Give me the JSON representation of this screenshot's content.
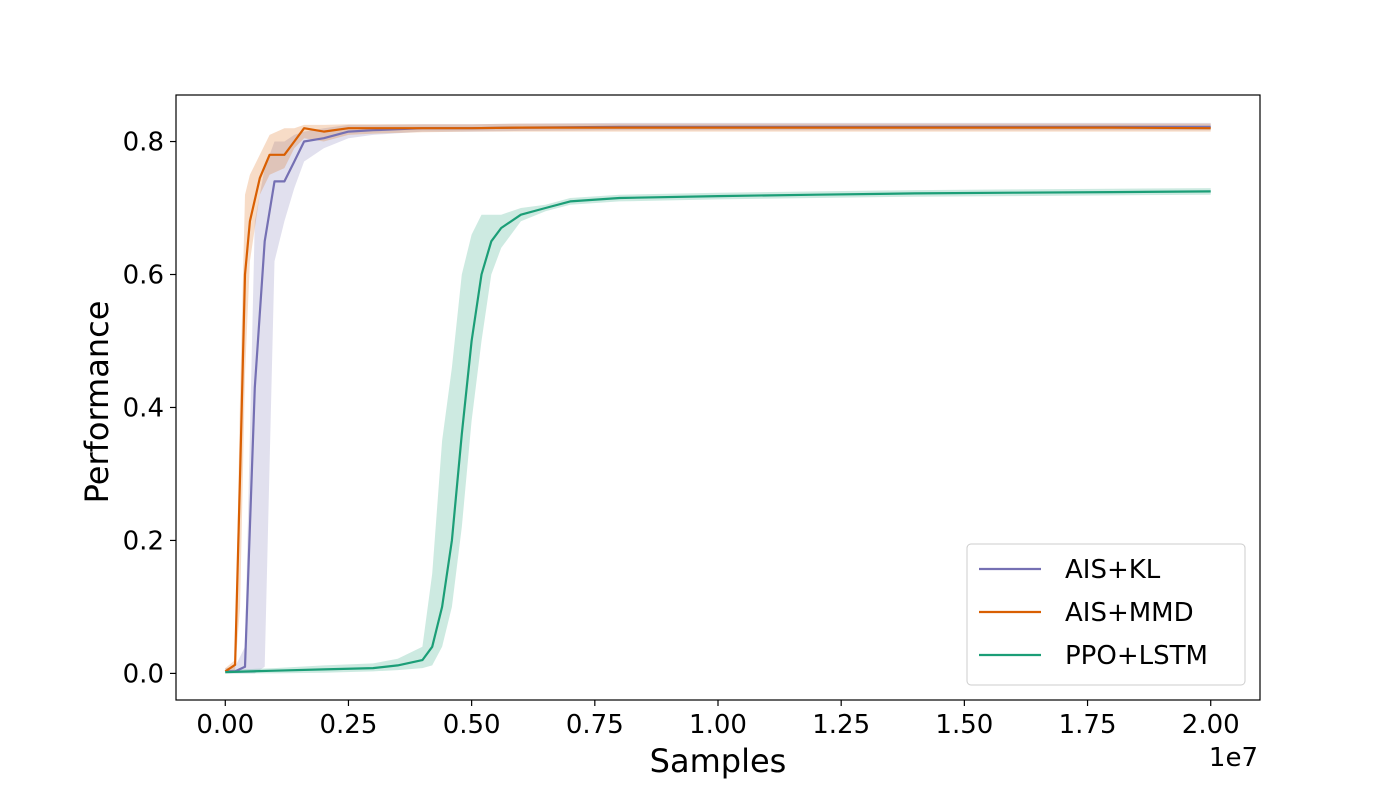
{
  "chart_data": {
    "type": "line",
    "title": "",
    "xlabel": "Samples",
    "ylabel": "Performance",
    "x_offset_label": "1e7",
    "xlim": [
      -0.1,
      2.1
    ],
    "ylim": [
      -0.04,
      0.87
    ],
    "xticks": [
      0.0,
      0.25,
      0.5,
      0.75,
      1.0,
      1.25,
      1.5,
      1.75,
      2.0
    ],
    "xtick_labels": [
      "0.00",
      "0.25",
      "0.50",
      "0.75",
      "1.00",
      "1.25",
      "1.50",
      "1.75",
      "2.00"
    ],
    "yticks": [
      0.0,
      0.2,
      0.4,
      0.6,
      0.8
    ],
    "ytick_labels": [
      "0.0",
      "0.2",
      "0.4",
      "0.6",
      "0.8"
    ],
    "grid": false,
    "legend_position": "bottom-right",
    "series": [
      {
        "name": "AIS+KL",
        "color": "#7570b3",
        "x": [
          0.0,
          0.02,
          0.04,
          0.06,
          0.08,
          0.1,
          0.12,
          0.14,
          0.16,
          0.2,
          0.25,
          0.3,
          0.4,
          0.5,
          0.6,
          0.8,
          1.0,
          1.2,
          1.4,
          1.6,
          1.8,
          2.0
        ],
        "y": [
          0.003,
          0.003,
          0.01,
          0.43,
          0.65,
          0.74,
          0.74,
          0.77,
          0.8,
          0.805,
          0.815,
          0.817,
          0.82,
          0.82,
          0.821,
          0.822,
          0.822,
          0.822,
          0.822,
          0.822,
          0.822,
          0.822
        ],
        "band_low": [
          0.0,
          0.0,
          0.0,
          0.0,
          0.01,
          0.62,
          0.68,
          0.73,
          0.77,
          0.79,
          0.805,
          0.81,
          0.815,
          0.815,
          0.816,
          0.817,
          0.817,
          0.817,
          0.817,
          0.817,
          0.817,
          0.817
        ],
        "band_high": [
          0.008,
          0.01,
          0.04,
          0.68,
          0.76,
          0.8,
          0.8,
          0.81,
          0.815,
          0.82,
          0.825,
          0.825,
          0.826,
          0.826,
          0.827,
          0.828,
          0.828,
          0.828,
          0.828,
          0.828,
          0.828,
          0.828
        ]
      },
      {
        "name": "AIS+MMD",
        "color": "#d95f02",
        "x": [
          0.0,
          0.02,
          0.03,
          0.04,
          0.05,
          0.07,
          0.09,
          0.12,
          0.14,
          0.16,
          0.2,
          0.25,
          0.3,
          0.4,
          0.5,
          0.6,
          0.8,
          1.0,
          1.2,
          1.4,
          1.6,
          1.8,
          2.0
        ],
        "y": [
          0.003,
          0.013,
          0.3,
          0.6,
          0.68,
          0.745,
          0.78,
          0.78,
          0.8,
          0.82,
          0.815,
          0.82,
          0.82,
          0.82,
          0.82,
          0.821,
          0.821,
          0.821,
          0.821,
          0.821,
          0.821,
          0.821,
          0.82
        ],
        "band_low": [
          0.0,
          0.005,
          0.1,
          0.45,
          0.62,
          0.72,
          0.75,
          0.76,
          0.79,
          0.805,
          0.8,
          0.81,
          0.812,
          0.814,
          0.815,
          0.815,
          0.815,
          0.815,
          0.815,
          0.815,
          0.815,
          0.815,
          0.815
        ],
        "band_high": [
          0.008,
          0.02,
          0.42,
          0.72,
          0.75,
          0.78,
          0.81,
          0.82,
          0.82,
          0.825,
          0.825,
          0.826,
          0.826,
          0.826,
          0.826,
          0.827,
          0.827,
          0.827,
          0.827,
          0.827,
          0.827,
          0.827,
          0.827
        ]
      },
      {
        "name": "PPO+LSTM",
        "color": "#1b9e77",
        "x": [
          0.0,
          0.1,
          0.2,
          0.3,
          0.35,
          0.4,
          0.42,
          0.44,
          0.46,
          0.48,
          0.5,
          0.52,
          0.54,
          0.56,
          0.6,
          0.65,
          0.7,
          0.8,
          1.0,
          1.2,
          1.4,
          1.6,
          1.8,
          2.0
        ],
        "y": [
          0.002,
          0.004,
          0.006,
          0.008,
          0.012,
          0.02,
          0.04,
          0.1,
          0.2,
          0.36,
          0.5,
          0.6,
          0.65,
          0.67,
          0.69,
          0.7,
          0.71,
          0.715,
          0.718,
          0.72,
          0.722,
          0.723,
          0.724,
          0.725
        ],
        "band_low": [
          0.0,
          0.0,
          0.001,
          0.003,
          0.005,
          0.008,
          0.012,
          0.04,
          0.1,
          0.22,
          0.38,
          0.5,
          0.6,
          0.64,
          0.68,
          0.695,
          0.705,
          0.71,
          0.713,
          0.715,
          0.717,
          0.718,
          0.719,
          0.72
        ],
        "band_high": [
          0.005,
          0.008,
          0.012,
          0.015,
          0.022,
          0.04,
          0.15,
          0.35,
          0.46,
          0.6,
          0.66,
          0.69,
          0.69,
          0.69,
          0.7,
          0.705,
          0.715,
          0.72,
          0.723,
          0.725,
          0.727,
          0.728,
          0.729,
          0.73
        ]
      }
    ]
  }
}
